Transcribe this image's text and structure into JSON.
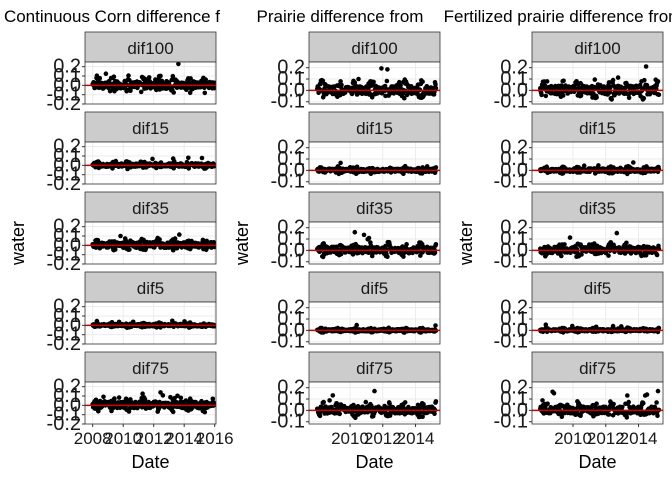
{
  "figure": {
    "background": "#ffffff",
    "strip_fill": "#cccccc",
    "panel_border": "#333333",
    "grid_color": "#ebebeb",
    "point_color": "#000000",
    "zero_line_color": "#cc0000"
  },
  "chart_data": [
    {
      "type": "scatter",
      "title": "Continuous Corn difference f",
      "xlabel": "Date",
      "ylabel": "water",
      "x_ticks": [
        "2008",
        "2010",
        "2012",
        "2014",
        "2016"
      ],
      "xlim": [
        "2007-07-01",
        "2016-02-01"
      ],
      "y_ticks": [
        "0.2",
        "0.1",
        "0.0",
        "-0.1",
        "-0.2"
      ],
      "ylim": [
        -0.2,
        0.25
      ],
      "grid": true,
      "hline": 0,
      "data_range": [
        "2008-01-01",
        "2015-12-31"
      ],
      "facets": [
        {
          "label": "dif100",
          "range": [
            -0.09,
            0.23
          ]
        },
        {
          "label": "dif15",
          "range": [
            -0.06,
            0.1
          ]
        },
        {
          "label": "dif35",
          "range": [
            -0.08,
            0.17
          ]
        },
        {
          "label": "dif5",
          "range": [
            -0.05,
            0.07
          ]
        },
        {
          "label": "dif75",
          "range": [
            -0.09,
            0.19
          ]
        }
      ]
    },
    {
      "type": "scatter",
      "title": "Prairie difference from",
      "xlabel": "Date",
      "ylabel": "water",
      "x_ticks": [
        "2010",
        "2012",
        "2014"
      ],
      "xlim": [
        "2007-07-01",
        "2015-06-30"
      ],
      "y_ticks": [
        "0.2",
        "0.1",
        "0.0",
        "-0.1"
      ],
      "ylim": [
        -0.12,
        0.25
      ],
      "grid": true,
      "hline": 0,
      "data_range": [
        "2008-01-01",
        "2015-03-31"
      ],
      "facets": [
        {
          "label": "dif100",
          "range": [
            -0.08,
            0.2
          ]
        },
        {
          "label": "dif15",
          "range": [
            -0.05,
            0.08
          ]
        },
        {
          "label": "dif35",
          "range": [
            -0.07,
            0.16
          ]
        },
        {
          "label": "dif5",
          "range": [
            -0.04,
            0.05
          ]
        },
        {
          "label": "dif75",
          "range": [
            -0.07,
            0.17
          ]
        }
      ]
    },
    {
      "type": "scatter",
      "title": "Fertilized prairie difference from",
      "xlabel": "Date",
      "ylabel": "water",
      "x_ticks": [
        "2010",
        "2012",
        "2014"
      ],
      "xlim": [
        "2007-07-01",
        "2015-06-30"
      ],
      "y_ticks": [
        "0.2",
        "0.1",
        "0.0",
        "-0.1"
      ],
      "ylim": [
        -0.12,
        0.25
      ],
      "grid": true,
      "hline": 0,
      "data_range": [
        "2008-01-01",
        "2015-03-31"
      ],
      "facets": [
        {
          "label": "dif100",
          "range": [
            -0.08,
            0.21
          ]
        },
        {
          "label": "dif15",
          "range": [
            -0.05,
            0.08
          ]
        },
        {
          "label": "dif35",
          "range": [
            -0.07,
            0.16
          ]
        },
        {
          "label": "dif5",
          "range": [
            -0.04,
            0.05
          ]
        },
        {
          "label": "dif75",
          "range": [
            -0.07,
            0.17
          ]
        }
      ]
    }
  ]
}
